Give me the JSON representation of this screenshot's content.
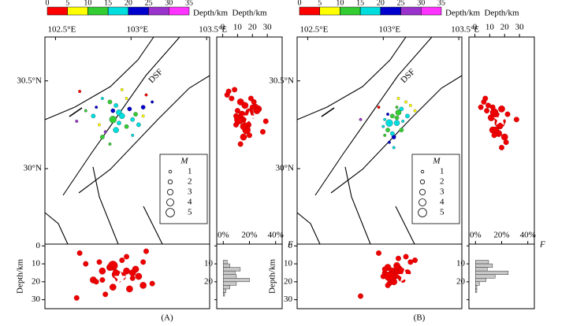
{
  "panels": [
    {
      "label": "(A)",
      "fault_label": "DSF",
      "colorbar": {
        "label": "Depth/km",
        "ticks": [
          0,
          5,
          10,
          15,
          20,
          25,
          30,
          35
        ],
        "colors": [
          "#ff0000",
          "#ffff00",
          "#33cc33",
          "#00dddd",
          "#0000cc",
          "#9933cc",
          "#ff33ff"
        ]
      },
      "lon_lim": [
        102.43,
        103.52
      ],
      "lat_lim": [
        29.57,
        30.75
      ],
      "lon_ticks": [
        {
          "value": 102.5,
          "label": "102.5°E"
        },
        {
          "value": 103,
          "label": "103°E"
        },
        {
          "value": 103.5,
          "label": "103.5°E"
        }
      ],
      "lat_ticks": [
        {
          "value": 30.5,
          "label": "30.5°N"
        },
        {
          "value": 30,
          "label": "30°N"
        }
      ],
      "depth_label": "Depth/km",
      "depth_ticks": [
        0,
        10,
        20,
        30
      ],
      "depth_lim": [
        -4,
        40
      ],
      "section_depth_lim": [
        -1,
        35
      ],
      "f_label": "F",
      "f_lim": [
        -5,
        45
      ],
      "f_ticks": [
        {
          "value": 0,
          "label": "0%"
        },
        {
          "value": 20,
          "label": "20%"
        },
        {
          "value": 40,
          "label": "40%"
        }
      ],
      "magnitude_legend": {
        "title": "M",
        "sizes": [
          1,
          2,
          3,
          4,
          5
        ]
      },
      "mainshock": {
        "lon": 102.93,
        "lat": 30.29,
        "depth": 18
      },
      "events": {
        "lon": [
          102.86,
          102.92,
          103.01,
          102.79,
          103.08,
          102.9,
          102.97,
          102.75,
          103.1,
          102.81,
          102.99,
          102.88,
          103.05,
          102.94,
          102.77,
          103.03,
          102.83,
          102.92,
          102.7,
          103.14,
          102.86,
          102.9,
          103.01,
          102.66,
          102.64,
          102.94,
          102.97,
          102.81,
          103.08,
          102.88
        ],
        "lat": [
          30.38,
          30.32,
          30.28,
          30.25,
          30.35,
          30.22,
          30.4,
          30.3,
          30.42,
          30.18,
          30.34,
          30.28,
          30.25,
          30.45,
          30.35,
          30.31,
          30.21,
          30.26,
          30.33,
          30.38,
          30.14,
          30.36,
          30.19,
          30.44,
          30.27,
          30.3,
          30.24,
          30.4,
          30.3,
          30.33
        ],
        "depth": [
          12,
          18,
          15,
          9,
          22,
          16,
          6,
          19,
          3,
          14,
          24,
          11,
          17,
          8,
          20,
          13,
          27,
          16,
          10,
          21,
          12,
          15,
          18,
          4,
          29,
          17,
          14,
          19,
          9,
          23
        ],
        "mag": [
          2,
          3,
          2,
          1,
          2,
          3,
          1,
          2,
          1,
          2,
          2,
          4,
          2,
          1,
          1,
          2,
          1,
          2,
          1,
          1,
          1,
          2,
          1,
          1,
          1,
          3,
          2,
          1,
          1,
          2
        ]
      },
      "histogram": {
        "bins": [
          8,
          10,
          12,
          14,
          16,
          18,
          20,
          22,
          24,
          26,
          28
        ],
        "values": [
          3,
          5,
          13,
          9,
          10,
          20,
          10,
          5,
          2,
          1
        ]
      }
    },
    {
      "label": "(B)",
      "fault_label": "DSF",
      "colorbar": {
        "label": "Depth/km",
        "ticks": [
          0,
          5,
          10,
          15,
          20,
          25,
          30,
          35
        ],
        "colors": [
          "#ff0000",
          "#ffff00",
          "#33cc33",
          "#00dddd",
          "#0000cc",
          "#9933cc",
          "#ff33ff"
        ]
      },
      "lon_lim": [
        102.43,
        103.52
      ],
      "lat_lim": [
        29.57,
        30.75
      ],
      "lon_ticks": [
        {
          "value": 102.5,
          "label": "102.5°E"
        },
        {
          "value": 103,
          "label": "103°E"
        },
        {
          "value": 103.5,
          "label": "103.5°E"
        }
      ],
      "lat_ticks": [
        {
          "value": 30.5,
          "label": "30.5°N"
        },
        {
          "value": 30,
          "label": "30°N"
        }
      ],
      "depth_label": "Depth/km",
      "depth_ticks": [
        0,
        10,
        20,
        30
      ],
      "depth_lim": [
        -4,
        40
      ],
      "section_depth_lim": [
        -1,
        35
      ],
      "f_label": "F",
      "f_lim": [
        -5,
        45
      ],
      "f_ticks": [
        {
          "value": 0,
          "label": "0%"
        },
        {
          "value": 20,
          "label": "20%"
        },
        {
          "value": 40,
          "label": "40%"
        }
      ],
      "magnitude_legend": {
        "title": "M",
        "sizes": [
          1,
          2,
          3,
          4,
          5
        ]
      },
      "mainshock": {
        "lon": 103.14,
        "lat": 30.28,
        "depth": 17
      },
      "events": {
        "lon": [
          103.06,
          103.09,
          103.03,
          103.12,
          103.01,
          103.15,
          103.07,
          103.1,
          103.0,
          103.18,
          103.04,
          103.09,
          103.13,
          102.97,
          103.21,
          103.06,
          103.03,
          103.12,
          103.07,
          102.85,
          103.01,
          103.16,
          103.1,
          103.04,
          103.09
        ],
        "lat": [
          30.3,
          30.26,
          30.22,
          30.34,
          30.28,
          30.38,
          30.18,
          30.32,
          30.24,
          30.36,
          30.15,
          30.29,
          30.27,
          30.35,
          30.33,
          30.2,
          30.31,
          30.22,
          30.12,
          30.28,
          30.19,
          30.3,
          30.4,
          30.26,
          30.35
        ],
        "depth": [
          14,
          16,
          12,
          18,
          15,
          6,
          20,
          13,
          17,
          9,
          21,
          11,
          19,
          4,
          8,
          16,
          22,
          14,
          18,
          28,
          13,
          15,
          7,
          17,
          12
        ],
        "mag": [
          2,
          3,
          2,
          2,
          1,
          1,
          2,
          3,
          1,
          1,
          1,
          2,
          1,
          1,
          1,
          2,
          1,
          2,
          1,
          1,
          1,
          2,
          1,
          4,
          1
        ]
      },
      "histogram": {
        "bins": [
          8,
          10,
          12,
          14,
          16,
          18,
          20,
          22,
          24,
          26
        ],
        "values": [
          10,
          13,
          9,
          25,
          15,
          8,
          3,
          1,
          1
        ]
      }
    }
  ]
}
